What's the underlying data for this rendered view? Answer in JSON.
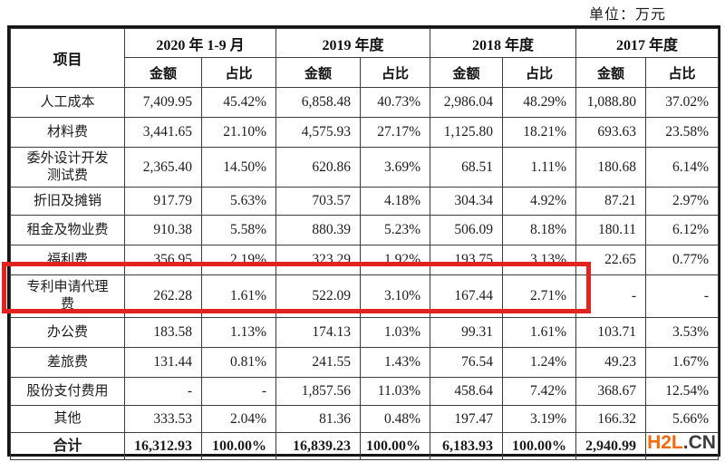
{
  "unit_label": "单位：万元",
  "colors": {
    "highlight_red": "#e2231f",
    "watermark_orange": "#f26a0c",
    "watermark_dark": "#3b3b3b"
  },
  "watermark": {
    "left": "H2L",
    "right": ".CN"
  },
  "table": {
    "item_header": "项目",
    "col_groups": [
      {
        "label": "2020 年 1-9 月"
      },
      {
        "label": "2019 年度"
      },
      {
        "label": "2018 年度"
      },
      {
        "label": "2017 年度"
      }
    ],
    "sub_headers": {
      "amount": "金额",
      "ratio": "占比"
    },
    "rows": [
      {
        "label": "人工成本",
        "cells": [
          "7,409.95",
          "45.42%",
          "6,858.48",
          "40.73%",
          "2,986.04",
          "48.29%",
          "1,088.80",
          "37.02%"
        ]
      },
      {
        "label": "材料费",
        "cells": [
          "3,441.65",
          "21.10%",
          "4,575.93",
          "27.17%",
          "1,125.80",
          "18.21%",
          "693.63",
          "23.58%"
        ]
      },
      {
        "label": "委外设计开发测试费",
        "cells": [
          "2,365.40",
          "14.50%",
          "620.86",
          "3.69%",
          "68.51",
          "1.11%",
          "180.68",
          "6.14%"
        ]
      },
      {
        "label": "折旧及摊销",
        "cells": [
          "917.79",
          "5.63%",
          "703.57",
          "4.18%",
          "304.34",
          "4.92%",
          "87.21",
          "2.97%"
        ]
      },
      {
        "label": "租金及物业费",
        "cells": [
          "910.38",
          "5.58%",
          "880.39",
          "5.23%",
          "506.09",
          "8.18%",
          "180.11",
          "6.12%"
        ]
      },
      {
        "label": "福利费",
        "cells": [
          "356.95",
          "2.19%",
          "323.29",
          "1.92%",
          "193.75",
          "3.13%",
          "22.65",
          "0.77%"
        ]
      },
      {
        "label": "专利申请代理费",
        "highlighted": true,
        "cells": [
          "262.28",
          "1.61%",
          "522.09",
          "3.10%",
          "167.44",
          "2.71%",
          "-",
          "-"
        ]
      },
      {
        "label": "办公费",
        "cells": [
          "183.58",
          "1.13%",
          "174.13",
          "1.03%",
          "99.31",
          "1.61%",
          "103.71",
          "3.53%"
        ]
      },
      {
        "label": "差旅费",
        "cells": [
          "131.44",
          "0.81%",
          "241.55",
          "1.43%",
          "76.54",
          "1.24%",
          "49.23",
          "1.67%"
        ]
      },
      {
        "label": "股份支付费用",
        "cells": [
          "-",
          "-",
          "1,857.56",
          "11.03%",
          "458.64",
          "7.42%",
          "368.67",
          "12.54%"
        ]
      },
      {
        "label": "其他",
        "cells": [
          "333.53",
          "2.04%",
          "81.36",
          "0.48%",
          "197.47",
          "3.19%",
          "166.32",
          "5.66%"
        ]
      },
      {
        "label": "合计",
        "is_total": true,
        "cells": [
          "16,312.93",
          "100.00%",
          "16,839.23",
          "100.00%",
          "6,183.93",
          "100.00%",
          "2,940.99",
          ""
        ]
      }
    ]
  }
}
